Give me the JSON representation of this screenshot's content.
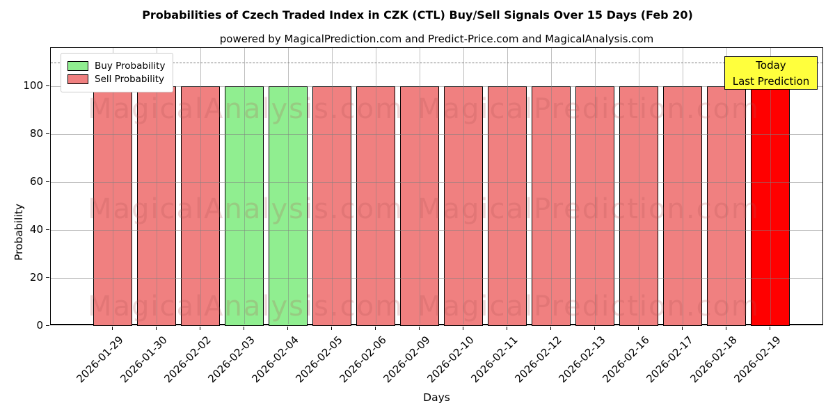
{
  "chart_data": {
    "type": "bar",
    "title": "Probabilities of Czech Traded Index in CZK (CTL) Buy/Sell Signals Over 15 Days (Feb 20)",
    "subtitle": "powered by MagicalPrediction.com and Predict-Price.com and MagicalAnalysis.com",
    "xlabel": "Days",
    "ylabel": "Probability",
    "ylim": [
      0,
      116
    ],
    "yticks": [
      0,
      20,
      40,
      60,
      80,
      100
    ],
    "grid": true,
    "legend_position": "upper-left",
    "dashed_reference_line_y": 110,
    "categories": [
      "2026-01-29",
      "2026-01-30",
      "2026-02-02",
      "2026-02-03",
      "2026-02-04",
      "2026-02-05",
      "2026-02-06",
      "2026-02-09",
      "2026-02-10",
      "2026-02-11",
      "2026-02-12",
      "2026-02-13",
      "2026-02-16",
      "2026-02-17",
      "2026-02-18",
      "2026-02-19"
    ],
    "series": [
      {
        "name": "Buy Probability",
        "color": "#90EE90",
        "values": [
          0,
          0,
          0,
          100,
          100,
          0,
          0,
          0,
          0,
          0,
          0,
          0,
          0,
          0,
          0,
          0
        ]
      },
      {
        "name": "Sell Probability",
        "color": "#F08080",
        "values": [
          100,
          100,
          100,
          0,
          0,
          100,
          100,
          100,
          100,
          100,
          100,
          100,
          100,
          100,
          100,
          100
        ]
      }
    ],
    "highlight": {
      "index": 15,
      "category": "2026-02-19",
      "color": "#FF0000",
      "meaning": "Today / Last Prediction"
    }
  },
  "legend": {
    "items": [
      {
        "label": "Buy Probability",
        "color": "#90EE90"
      },
      {
        "label": "Sell Probability",
        "color": "#F08080"
      }
    ]
  },
  "annotation": {
    "line1": "Today",
    "line2": "Last Prediction",
    "bg_color": "#FFFF3D"
  },
  "watermarks": {
    "left_text": "MagicalAnalysis.com",
    "right_text": "MagicalPrediction.com",
    "color": "rgba(176,80,80,0.22)"
  },
  "colors": {
    "buy": "#90EE90",
    "sell": "#F08080",
    "today": "#FF0000",
    "grid": "#b0b0b0",
    "dashed_line": "#7a7a7a",
    "bar_edge": "#000000"
  }
}
